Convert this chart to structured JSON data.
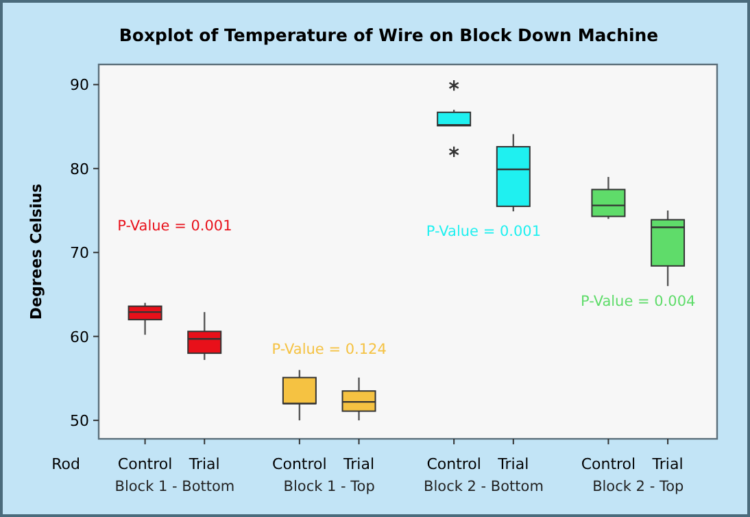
{
  "chart_data": {
    "type": "box",
    "title": "Boxplot of Temperature of Wire on Block Down Machine",
    "xlabel": "Rod",
    "ylabel": "Degrees Celsius",
    "categories": [
      "Control",
      "Trial",
      "Control",
      "Trial",
      "Control",
      "Trial",
      "Control",
      "Trial"
    ],
    "ylim": [
      47.8,
      92.4
    ],
    "yticks": [
      50,
      60,
      70,
      80,
      90
    ],
    "series": [
      {
        "color": "#e8101a",
        "boxes": [
          {
            "low": 60.2,
            "q1": 62.0,
            "median": 62.9,
            "q3": 63.6,
            "high": 64.0
          },
          {
            "low": 57.2,
            "q1": 58.0,
            "median": 59.7,
            "q3": 60.6,
            "high": 62.9
          },
          null,
          null,
          null,
          null,
          null,
          null
        ]
      },
      {
        "color": "#f5c242",
        "boxes": [
          null,
          null,
          {
            "low": 50.0,
            "q1": 52.0,
            "median": 52.0,
            "q3": 55.1,
            "high": 56.0
          },
          {
            "low": 50.0,
            "q1": 51.1,
            "median": 52.2,
            "q3": 53.5,
            "high": 55.1
          },
          null,
          null,
          null,
          null
        ]
      },
      {
        "color": "#1ff0f0",
        "boxes": [
          null,
          null,
          null,
          null,
          {
            "low": 85.1,
            "q1": 85.1,
            "median": 85.2,
            "q3": 86.7,
            "high": 87.0,
            "outliers": [
              89.9,
              82.0
            ]
          },
          {
            "low": 74.9,
            "q1": 75.5,
            "median": 79.9,
            "q3": 82.6,
            "high": 84.1
          },
          null,
          null
        ]
      },
      {
        "color": "#5fdc6a",
        "boxes": [
          null,
          null,
          null,
          null,
          null,
          null,
          {
            "low": 74.0,
            "q1": 74.3,
            "median": 75.6,
            "q3": 77.5,
            "high": 79.0
          },
          {
            "low": 66.0,
            "q1": 68.4,
            "median": 73.0,
            "q3": 73.9,
            "high": 75.0
          }
        ]
      }
    ],
    "annotations": [
      "P-Value = 0.001",
      "P-Value = 0.124",
      "P-Value = 0.001",
      "P-Value = 0.004",
      "Block 1 - Bottom",
      "Block 1 - Top",
      "Block 2 - Bottom",
      "Block 2 - Top"
    ]
  }
}
